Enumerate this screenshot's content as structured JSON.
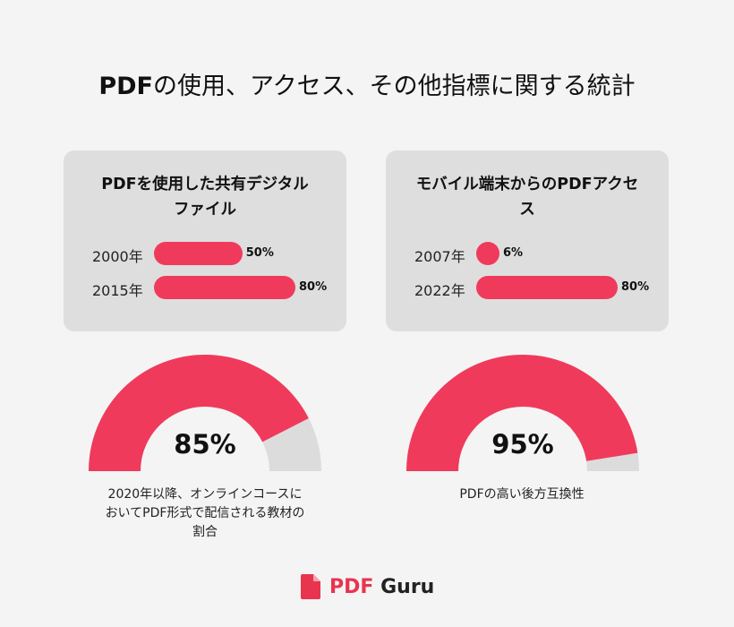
{
  "title": {
    "bold": "PDF",
    "rest": "の使用、アクセス、その他指標に関する統計"
  },
  "chart_data": [
    {
      "type": "bar",
      "title": "PDFを使用した共有デジタルファイル",
      "title_lines": [
        "PDFを使用した共有デジタル",
        "ファイル"
      ],
      "categories": [
        "2000年",
        "2015年"
      ],
      "values": [
        50,
        80
      ],
      "value_labels": [
        "50%",
        "80%"
      ],
      "xlim": [
        0,
        100
      ],
      "color": "#f03a5c"
    },
    {
      "type": "bar",
      "title": "モバイル端末からのPDFアクセス",
      "title_lines": [
        "モバイル端末からのPDFアクセ",
        "ス"
      ],
      "categories": [
        "2007年",
        "2022年"
      ],
      "values": [
        6,
        80
      ],
      "value_labels": [
        "6%",
        "80%"
      ],
      "xlim": [
        0,
        100
      ],
      "color": "#f03a5c"
    },
    {
      "type": "pie",
      "subtype": "half-donut-gauge",
      "value": 85,
      "value_label": "85%",
      "caption_lines": [
        "2020年以降、オンラインコースに",
        "おいてPDF形式で配信される教材の",
        "割合"
      ],
      "fill_color": "#f03a5c",
      "track_color": "#dcdcdc"
    },
    {
      "type": "pie",
      "subtype": "half-donut-gauge",
      "value": 95,
      "value_label": "95%",
      "caption_lines": [
        "PDFの高い後方互換性"
      ],
      "fill_color": "#f03a5c",
      "track_color": "#dcdcdc"
    }
  ],
  "brand": {
    "pdf": "PDF",
    "guru": "Guru",
    "icon": "pdf-document-icon",
    "color": "#e8344f"
  }
}
